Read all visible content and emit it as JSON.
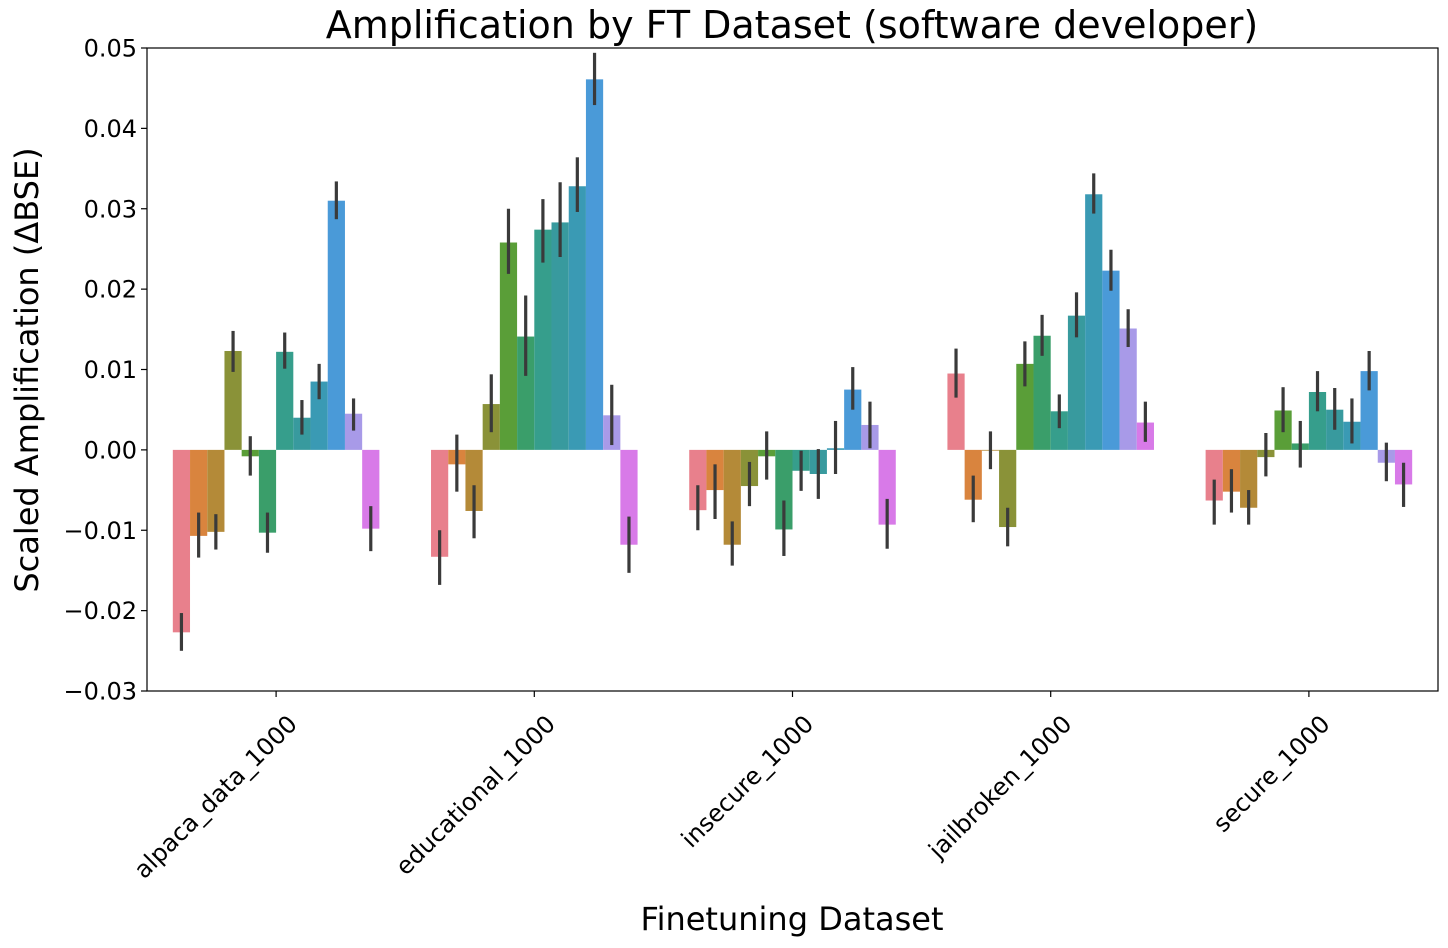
{
  "chart_data": {
    "type": "bar",
    "title": "Amplification by FT Dataset (software developer)",
    "xlabel": "Finetuning Dataset",
    "ylabel": "Scaled Amplification (ΔBSE)",
    "ylim": [
      -0.03,
      0.05
    ],
    "yticks": [
      -0.03,
      -0.02,
      -0.01,
      0.0,
      0.01,
      0.02,
      0.03,
      0.04,
      0.05
    ],
    "ytick_labels": [
      "−0.03",
      "−0.02",
      "−0.01",
      "0.00",
      "0.01",
      "0.02",
      "0.03",
      "0.04",
      "0.05"
    ],
    "grid": false,
    "legend": "none",
    "categories": [
      "alpaca_data_1000",
      "educational_1000",
      "insecure_1000",
      "jailbroken_1000",
      "secure_1000"
    ],
    "series_colors": [
      "#e8808c",
      "#d9843e",
      "#b48a38",
      "#8a9238",
      "#5a9e38",
      "#3a9e6a",
      "#369e8c",
      "#389a9e",
      "#3a9ab4",
      "#4a9ad8",
      "#a89ae8",
      "#d87ae8",
      "#e87ac8"
    ],
    "series": [
      {
        "values": [
          -0.0227,
          -0.0133,
          -0.0075,
          0.0095,
          -0.0063
        ]
      },
      {
        "values": [
          -0.0107,
          -0.0018,
          -0.005,
          -0.0062,
          -0.0052
        ]
      },
      {
        "values": [
          -0.0102,
          -0.0076,
          -0.0118,
          -0.0001,
          -0.0072
        ]
      },
      {
        "values": [
          0.0123,
          0.0057,
          -0.0045,
          -0.0096,
          -0.0009
        ]
      },
      {
        "values": [
          -0.0008,
          0.0258,
          -0.0008,
          0.0107,
          0.0049
        ]
      },
      {
        "values": [
          -0.0103,
          0.0141,
          -0.0099,
          0.0142,
          0.0008
        ]
      },
      {
        "values": [
          0.0122,
          0.0274,
          -0.0026,
          0.0048,
          0.0072
        ]
      },
      {
        "values": [
          0.004,
          0.0283,
          -0.003,
          0.0167,
          0.005
        ]
      },
      {
        "values": [
          0.0085,
          0.0328,
          0.0002,
          0.0318,
          0.0035
        ]
      },
      {
        "values": [
          0.031,
          0.0461,
          0.0075,
          0.0223,
          0.0098
        ]
      },
      {
        "values": [
          0.0045,
          0.0043,
          0.0031,
          0.0151,
          -0.0016
        ]
      },
      {
        "values": [
          -0.0098,
          -0.0118,
          -0.0093,
          0.0034,
          -0.0043
        ]
      }
    ],
    "errors": [
      [
        [
          -0.025,
          -0.0203
        ],
        [
          -0.0168,
          -0.01
        ],
        [
          -0.01,
          -0.0044
        ],
        [
          0.0065,
          0.0126
        ],
        [
          -0.0093,
          -0.0037
        ]
      ],
      [
        [
          -0.0134,
          -0.0078
        ],
        [
          -0.0052,
          0.0019
        ],
        [
          -0.0086,
          -0.0018
        ],
        [
          -0.009,
          -0.0032
        ],
        [
          -0.0078,
          -0.0024
        ]
      ],
      [
        [
          -0.0124,
          -0.008
        ],
        [
          -0.011,
          -0.0044
        ],
        [
          -0.0144,
          -0.0089
        ],
        [
          -0.0024,
          0.0023
        ],
        [
          -0.0093,
          -0.005
        ]
      ],
      [
        [
          0.0097,
          0.0148
        ],
        [
          0.0022,
          0.0094
        ],
        [
          -0.007,
          -0.0015
        ],
        [
          -0.012,
          -0.0072
        ],
        [
          -0.0033,
          0.0021
        ]
      ],
      [
        [
          -0.0032,
          0.0017
        ],
        [
          0.0219,
          0.03
        ],
        [
          -0.0037,
          0.0023
        ],
        [
          0.0079,
          0.0135
        ],
        [
          0.0022,
          0.0078
        ]
      ],
      [
        [
          -0.0128,
          -0.0078
        ],
        [
          0.0092,
          0.0192
        ],
        [
          -0.0132,
          -0.0063
        ],
        [
          0.0117,
          0.0168
        ],
        [
          -0.0022,
          0.0036
        ]
      ],
      [
        [
          0.0101,
          0.0146
        ],
        [
          0.0233,
          0.0312
        ],
        [
          -0.0051,
          -0.0001
        ],
        [
          0.0027,
          0.0069
        ],
        [
          0.0048,
          0.0098
        ]
      ],
      [
        [
          0.0019,
          0.0062
        ],
        [
          0.024,
          0.0333
        ],
        [
          -0.0061,
          0.0001
        ],
        [
          0.014,
          0.0196
        ],
        [
          0.0025,
          0.0077
        ]
      ],
      [
        [
          0.0063,
          0.0107
        ],
        [
          0.0296,
          0.0364
        ],
        [
          -0.003,
          0.0036
        ],
        [
          0.0294,
          0.0344
        ],
        [
          0.0008,
          0.0064
        ]
      ],
      [
        [
          0.0287,
          0.0334
        ],
        [
          0.0429,
          0.0494
        ],
        [
          0.005,
          0.0103
        ],
        [
          0.0198,
          0.0249
        ],
        [
          0.0074,
          0.0123
        ]
      ],
      [
        [
          0.0024,
          0.0064
        ],
        [
          0.0006,
          0.0081
        ],
        [
          0.0002,
          0.006
        ],
        [
          0.0128,
          0.0175
        ],
        [
          -0.0039,
          0.0009
        ]
      ],
      [
        [
          -0.0126,
          -0.007
        ],
        [
          -0.0153,
          -0.0083
        ],
        [
          -0.0123,
          -0.0061
        ],
        [
          0.001,
          0.006
        ],
        [
          -0.0071,
          -0.0016
        ]
      ]
    ]
  }
}
